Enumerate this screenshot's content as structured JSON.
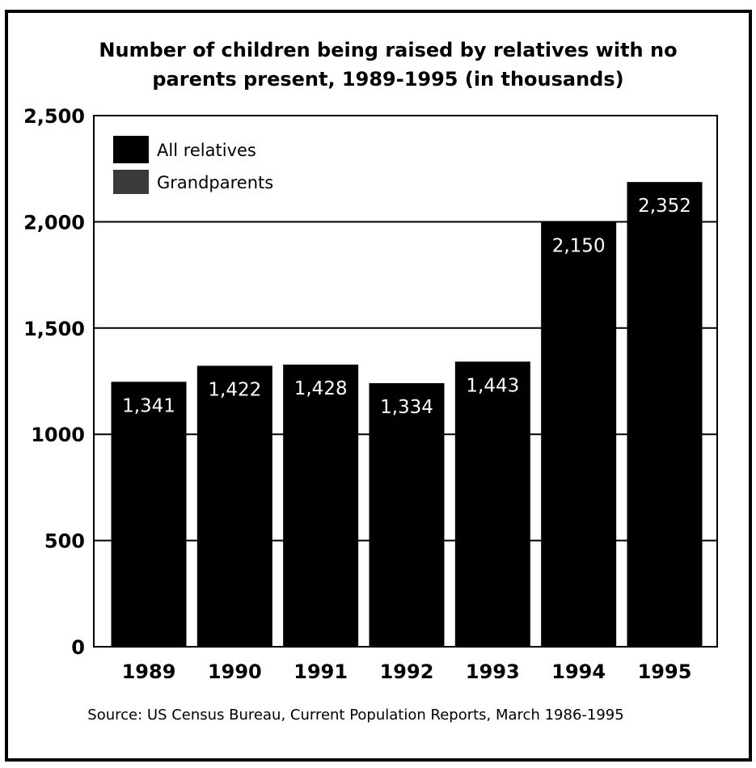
{
  "chart_data": {
    "type": "bar",
    "title_line1": "Number of children being raised by relatives with no",
    "title_line2": "parents present, 1989-1995 (in thousands)",
    "categories": [
      "1989",
      "1990",
      "1991",
      "1992",
      "1993",
      "1994",
      "1995"
    ],
    "series": [
      {
        "name": "All relatives",
        "values": [
          1341,
          1422,
          1428,
          1334,
          1443,
          2150,
          2352
        ],
        "labels": [
          "1,341",
          "1,422",
          "1,428",
          "1,334",
          "1,443",
          "2,150",
          "2,352"
        ],
        "color": "#000000"
      }
    ],
    "legend": [
      {
        "name": "All relatives",
        "color": "#000000"
      },
      {
        "name": "Grandparents",
        "color": "#3a3a3a"
      }
    ],
    "legend_placement": "top-left",
    "ylim": [
      0,
      2500
    ],
    "yticks": [
      0,
      500,
      1000,
      1500,
      2000,
      2500
    ],
    "ytick_labels": [
      "0",
      "500",
      "1000",
      "1,500",
      "2,000",
      "2,500"
    ],
    "grid": true,
    "source": "Source: US Census Bureau, Current Population Reports, March 1986-1995"
  }
}
